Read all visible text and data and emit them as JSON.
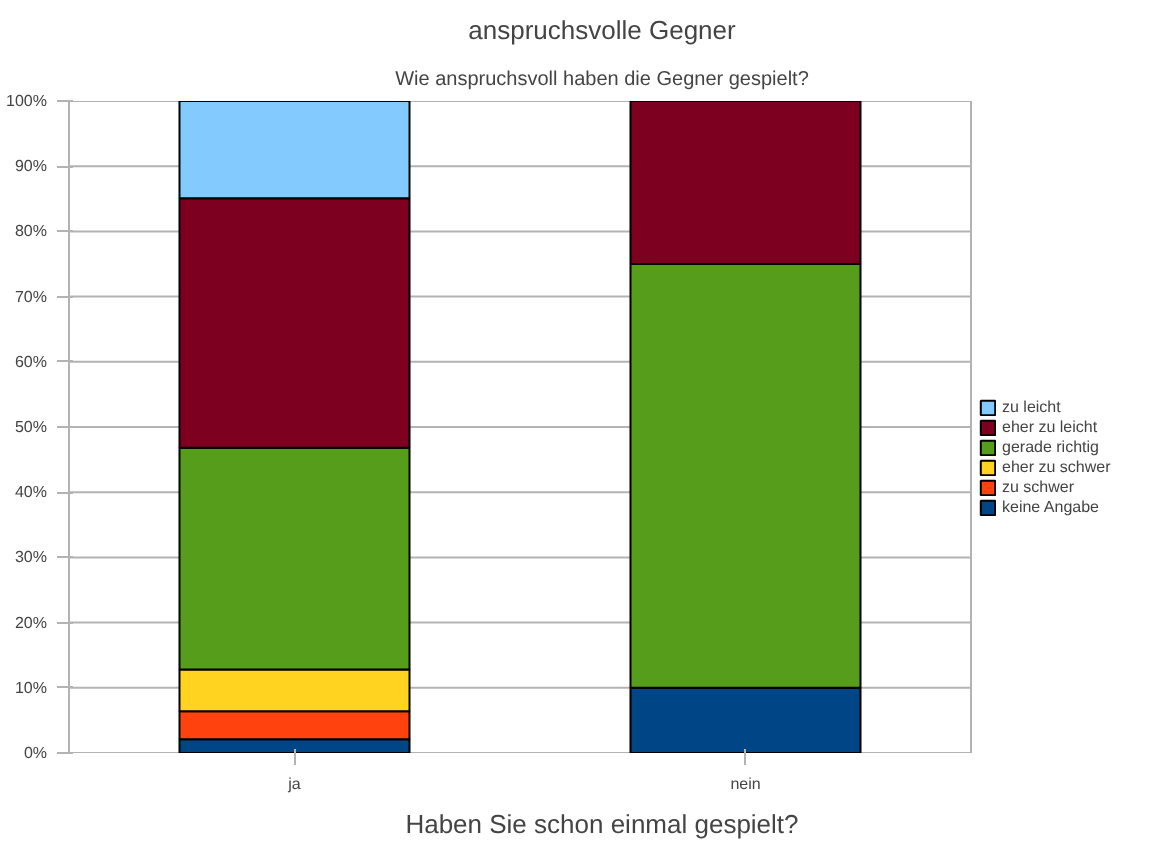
{
  "chart_data": {
    "type": "bar",
    "stacked": true,
    "title": "anspruchsvolle Gegner",
    "subtitle": "Wie anspruchsvoll haben die Gegner gespielt?",
    "xlabel": "Haben Sie schon einmal gespielt?",
    "categories": [
      "ja",
      "nein"
    ],
    "series": [
      {
        "name": "keine Angabe",
        "color": "#004586",
        "values": [
          2.1,
          10
        ]
      },
      {
        "name": "zu schwer",
        "color": "#ff420e",
        "values": [
          4.3,
          null
        ]
      },
      {
        "name": "eher zu schwer",
        "color": "#ffd320",
        "values": [
          6.4,
          null
        ]
      },
      {
        "name": "gerade richtig",
        "color": "#579d1c",
        "values": [
          34.0,
          65
        ]
      },
      {
        "name": "eher zu leicht",
        "color": "#7e0021",
        "values": [
          38.3,
          25
        ]
      },
      {
        "name": "zu leicht",
        "color": "#83caff",
        "values": [
          14.9,
          null
        ]
      }
    ],
    "ylim": [
      0,
      100
    ],
    "yticks": [
      {
        "value": 0,
        "label": "0%"
      },
      {
        "value": 10,
        "label": "10%"
      },
      {
        "value": 20,
        "label": "20%"
      },
      {
        "value": 30,
        "label": "30%"
      },
      {
        "value": 40,
        "label": "40%"
      },
      {
        "value": 50,
        "label": "50%"
      },
      {
        "value": 60,
        "label": "60%"
      },
      {
        "value": 70,
        "label": "70%"
      },
      {
        "value": 80,
        "label": "80%"
      },
      {
        "value": 90,
        "label": "90%"
      },
      {
        "value": 100,
        "label": "100%"
      }
    ],
    "grid": "y",
    "legend": "right"
  }
}
